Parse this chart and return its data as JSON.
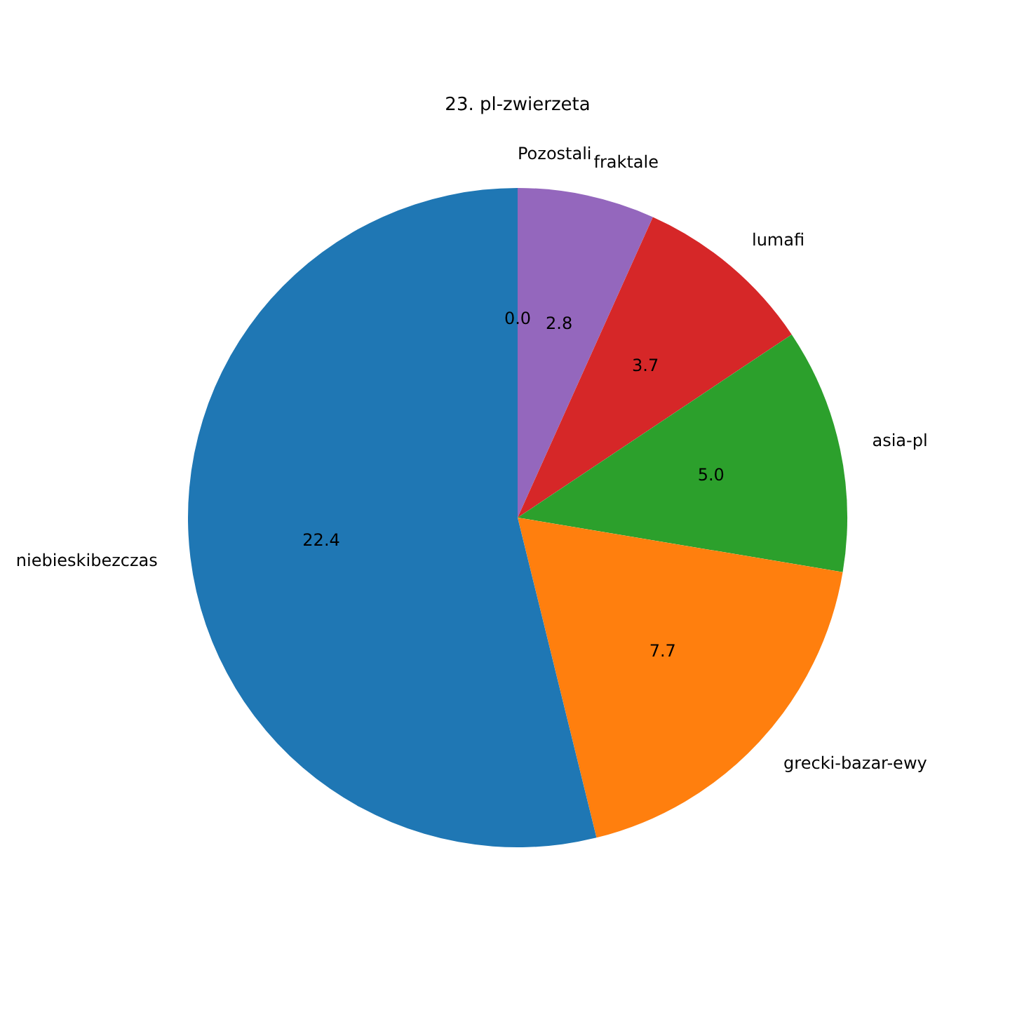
{
  "chart_data": {
    "type": "pie",
    "title": "23. pl-zwierzeta",
    "categories": [
      "Pozostali",
      "fraktale",
      "lumafi",
      "asia-pl",
      "grecki-bazar-ewy",
      "niebieskibezczas"
    ],
    "values": [
      0.0,
      2.8,
      3.7,
      5.0,
      7.7,
      22.4
    ],
    "value_labels": [
      "0.0",
      "2.8",
      "3.7",
      "5.0",
      "7.7",
      "22.4"
    ],
    "colors": [
      "#8c564b",
      "#9467bd",
      "#d62728",
      "#2ca02c",
      "#ff7f0e",
      "#1f77b4"
    ],
    "legend": false
  }
}
